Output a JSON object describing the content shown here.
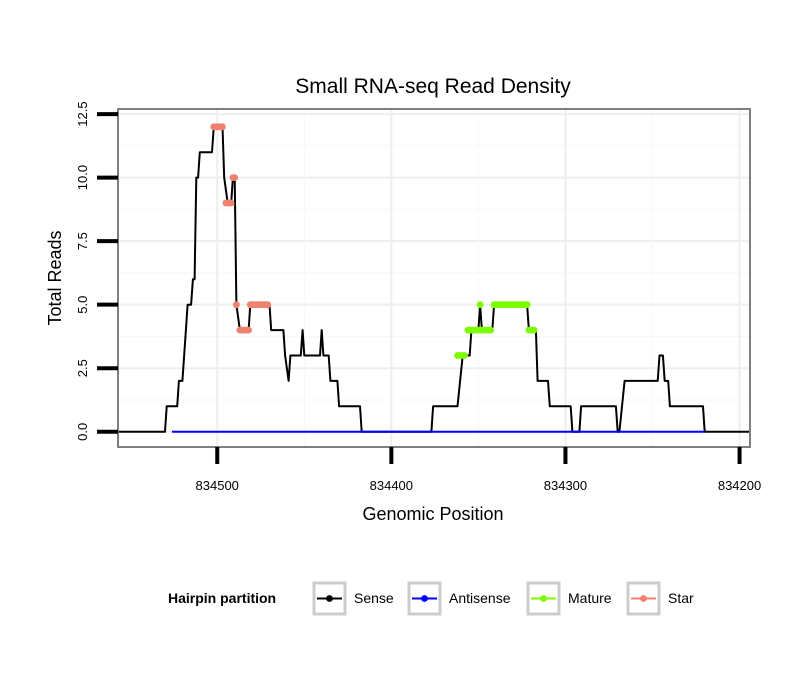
{
  "chart_data": {
    "type": "line",
    "title": "Small RNA-seq Read Density",
    "xlabel": "Genomic Position",
    "ylabel": "Total Reads",
    "x_reversed": true,
    "xlim": [
      834557,
      834194
    ],
    "ylim": [
      -0.6,
      12.7
    ],
    "x_ticks": [
      834500,
      834400,
      834300,
      834200
    ],
    "x_tick_labels": [
      "834500",
      "834400",
      "834300",
      "834200"
    ],
    "y_ticks": [
      0,
      2.5,
      5,
      7.5,
      10,
      12.5
    ],
    "y_tick_labels": [
      "0.0",
      "2.5",
      "5.0",
      "7.5",
      "10.0",
      "12.5"
    ],
    "grid": true,
    "legend": {
      "title": "Hairpin partition",
      "position": "bottom",
      "entries": [
        {
          "label": "Sense",
          "color": "#000000"
        },
        {
          "label": "Antisense",
          "color": "#0000ff"
        },
        {
          "label": "Mature",
          "color": "#7cfc00"
        },
        {
          "label": "Star",
          "color": "#f08070"
        }
      ]
    },
    "series": [
      {
        "name": "Sense",
        "color": "#000000",
        "mode": "line",
        "points": [
          [
            834557,
            0
          ],
          [
            834530,
            0
          ],
          [
            834529,
            1
          ],
          [
            834523,
            1
          ],
          [
            834522,
            2
          ],
          [
            834520,
            2
          ],
          [
            834518,
            4
          ],
          [
            834517,
            5
          ],
          [
            834515,
            5
          ],
          [
            834514,
            6
          ],
          [
            834513,
            6
          ],
          [
            834512,
            10
          ],
          [
            834511,
            10
          ],
          [
            834510,
            11
          ],
          [
            834503,
            11
          ],
          [
            834502,
            12
          ],
          [
            834497,
            12
          ],
          [
            834496,
            10
          ],
          [
            834494,
            9
          ],
          [
            834492,
            9
          ],
          [
            834491,
            10
          ],
          [
            834490,
            10
          ],
          [
            834489,
            5
          ],
          [
            834487,
            4
          ],
          [
            834482,
            4
          ],
          [
            834481,
            5
          ],
          [
            834476,
            5
          ],
          [
            834475,
            5
          ],
          [
            834470,
            5
          ],
          [
            834469,
            4
          ],
          [
            834462,
            4
          ],
          [
            834461,
            3
          ],
          [
            834459,
            2
          ],
          [
            834458,
            3
          ],
          [
            834452,
            3
          ],
          [
            834451,
            4
          ],
          [
            834450,
            3
          ],
          [
            834441,
            3
          ],
          [
            834440,
            4
          ],
          [
            834439,
            3
          ],
          [
            834436,
            3
          ],
          [
            834435,
            2
          ],
          [
            834431,
            2
          ],
          [
            834430,
            1
          ],
          [
            834418,
            1
          ],
          [
            834417,
            0
          ],
          [
            834377,
            0
          ],
          [
            834376,
            1
          ],
          [
            834362,
            1
          ],
          [
            834359,
            3
          ],
          [
            834355,
            3
          ],
          [
            834354,
            4
          ],
          [
            834350,
            4
          ],
          [
            834349,
            5
          ],
          [
            834348,
            4
          ],
          [
            834342,
            4
          ],
          [
            834341,
            5
          ],
          [
            834322,
            5
          ],
          [
            834321,
            4
          ],
          [
            834317,
            4
          ],
          [
            834316,
            2
          ],
          [
            834310,
            2
          ],
          [
            834309,
            1
          ],
          [
            834297,
            1
          ],
          [
            834296,
            0
          ],
          [
            834292,
            0
          ],
          [
            834291,
            1
          ],
          [
            834271,
            1
          ],
          [
            834270,
            0
          ],
          [
            834269,
            0
          ],
          [
            834266,
            2
          ],
          [
            834247,
            2
          ],
          [
            834246,
            3
          ],
          [
            834244,
            3
          ],
          [
            834243,
            2
          ],
          [
            834241,
            2
          ],
          [
            834240,
            1
          ],
          [
            834221,
            1
          ],
          [
            834220,
            0
          ],
          [
            834194,
            0
          ]
        ]
      },
      {
        "name": "Antisense",
        "color": "#0000ff",
        "mode": "line",
        "points": [
          [
            834526,
            0
          ],
          [
            834220,
            0
          ]
        ]
      },
      {
        "name": "Mature",
        "color": "#7cfc00",
        "mode": "points",
        "points": [
          [
            834362,
            3
          ],
          [
            834361,
            3
          ],
          [
            834360,
            3
          ],
          [
            834359,
            3
          ],
          [
            834358,
            3
          ],
          [
            834356,
            4
          ],
          [
            834355,
            4
          ],
          [
            834354,
            4
          ],
          [
            834353,
            4
          ],
          [
            834352,
            4
          ],
          [
            834351,
            4
          ],
          [
            834350,
            4
          ],
          [
            834348,
            4
          ],
          [
            834347,
            4
          ],
          [
            834346,
            4
          ],
          [
            834345,
            4
          ],
          [
            834344,
            4
          ],
          [
            834343,
            4
          ],
          [
            834349,
            5
          ],
          [
            834341,
            5
          ],
          [
            834340,
            5
          ],
          [
            834339,
            5
          ],
          [
            834338,
            5
          ],
          [
            834337,
            5
          ],
          [
            834336,
            5
          ],
          [
            834335,
            5
          ],
          [
            834334,
            5
          ],
          [
            834333,
            5
          ],
          [
            834332,
            5
          ],
          [
            834331,
            5
          ],
          [
            834330,
            5
          ],
          [
            834329,
            5
          ],
          [
            834328,
            5
          ],
          [
            834327,
            5
          ],
          [
            834326,
            5
          ],
          [
            834325,
            5
          ],
          [
            834324,
            5
          ],
          [
            834323,
            5
          ],
          [
            834322,
            5
          ],
          [
            834321,
            4
          ],
          [
            834320,
            4
          ],
          [
            834319,
            4
          ],
          [
            834318,
            4
          ]
        ]
      },
      {
        "name": "Star",
        "color": "#f08070",
        "mode": "points",
        "points": [
          [
            834502,
            12
          ],
          [
            834501,
            12
          ],
          [
            834500,
            12
          ],
          [
            834499,
            12
          ],
          [
            834498,
            12
          ],
          [
            834497,
            12
          ],
          [
            834495,
            9
          ],
          [
            834494,
            9
          ],
          [
            834493,
            9
          ],
          [
            834492,
            9
          ],
          [
            834491,
            10
          ],
          [
            834490,
            10
          ],
          [
            834489,
            5
          ],
          [
            834487,
            4
          ],
          [
            834486,
            4
          ],
          [
            834485,
            4
          ],
          [
            834484,
            4
          ],
          [
            834483,
            4
          ],
          [
            834482,
            4
          ],
          [
            834481,
            5
          ],
          [
            834480,
            5
          ],
          [
            834479,
            5
          ],
          [
            834478,
            5
          ],
          [
            834477,
            5
          ],
          [
            834476,
            5
          ],
          [
            834475,
            5
          ],
          [
            834474,
            5
          ],
          [
            834473,
            5
          ],
          [
            834472,
            5
          ],
          [
            834471,
            5
          ]
        ]
      }
    ]
  }
}
